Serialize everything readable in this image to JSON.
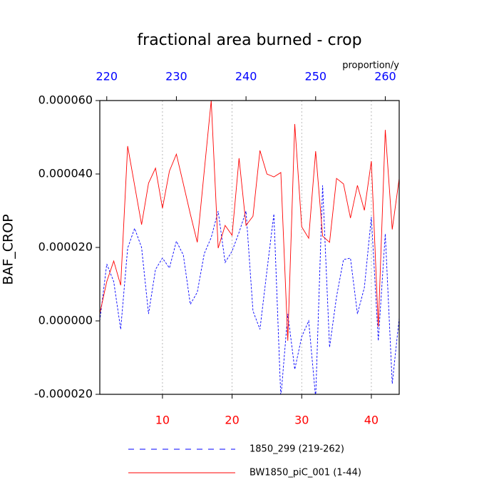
{
  "chart_data": {
    "type": "line",
    "title": "fractional area burned - crop",
    "subtitle": "proportion/y",
    "ylabel": "BAF_CROP",
    "x": [
      1,
      2,
      3,
      4,
      5,
      6,
      7,
      8,
      9,
      10,
      11,
      12,
      13,
      14,
      15,
      16,
      17,
      18,
      19,
      20,
      21,
      22,
      23,
      24,
      25,
      26,
      27,
      28,
      29,
      30,
      31,
      32,
      33,
      34,
      35,
      36,
      37,
      38,
      39,
      40,
      41,
      42,
      43,
      44
    ],
    "xlim": [
      1,
      44
    ],
    "xticks": [
      10,
      20,
      30,
      40
    ],
    "x2": [
      219,
      220,
      221,
      222,
      223,
      224,
      225,
      226,
      227,
      228,
      229,
      230,
      231,
      232,
      233,
      234,
      235,
      236,
      237,
      238,
      239,
      240,
      241,
      242,
      243,
      244,
      245,
      246,
      247,
      248,
      249,
      250,
      251,
      252,
      253,
      254,
      255,
      256,
      257,
      258,
      259,
      260,
      261,
      262
    ],
    "x2lim": [
      219,
      262
    ],
    "x2ticks": [
      220,
      230,
      240,
      250,
      260
    ],
    "ylim": [
      -2e-05,
      6e-05
    ],
    "yticks": [
      {
        "value": -2e-05,
        "label": "-0.000020"
      },
      {
        "value": 0,
        "label": "0.000000"
      },
      {
        "value": 2e-05,
        "label": "0.000020"
      },
      {
        "value": 4e-05,
        "label": "0.000040"
      },
      {
        "value": 6e-05,
        "label": "0.000060"
      }
    ],
    "grid": true,
    "series": [
      {
        "name": "1850_299 (219-262)",
        "color": "#0000ff",
        "dash": true,
        "axis": "x2",
        "values": [
          0,
          1.55e-05,
          1.07e-05,
          -2.3e-06,
          1.98e-05,
          2.52e-05,
          2e-05,
          1.9e-06,
          1.4e-05,
          1.71e-05,
          1.44e-05,
          2.17e-05,
          1.79e-05,
          4.5e-06,
          7.8e-06,
          1.83e-05,
          2.27e-05,
          2.99e-05,
          1.59e-05,
          1.9e-05,
          2.41e-05,
          2.99e-05,
          2.7e-06,
          -2.3e-06,
          1.36e-05,
          2.91e-05,
          -2.1e-05,
          1.9e-06,
          -1.32e-05,
          -4.3e-06,
          0,
          -2.1e-05,
          3.69e-05,
          -7.2e-06,
          6.6e-06,
          1.67e-05,
          1.71e-05,
          1.9e-06,
          9.1e-06,
          2.83e-05,
          -5.4e-06,
          2.37e-05,
          -1.71e-05,
          8e-07
        ]
      },
      {
        "name": "BW1850_piC_001 (1-44)",
        "color": "#ff0000",
        "dash": false,
        "values": [
          2e-06,
          1.07e-05,
          1.63e-05,
          9.7e-06,
          4.76e-05,
          3.69e-05,
          2.62e-05,
          3.75e-05,
          4.16e-05,
          3.07e-05,
          4.08e-05,
          4.54e-05,
          3.73e-05,
          2.91e-05,
          2.14e-05,
          4.08e-05,
          6e-05,
          1.98e-05,
          2.6e-05,
          2.33e-05,
          4.43e-05,
          2.6e-05,
          2.85e-05,
          4.64e-05,
          4e-05,
          3.92e-05,
          4.04e-05,
          -5.4e-06,
          5.36e-05,
          2.56e-05,
          2.25e-05,
          4.62e-05,
          2.31e-05,
          2.14e-05,
          3.88e-05,
          3.73e-05,
          2.8e-05,
          3.69e-05,
          3.01e-05,
          4.35e-05,
          -1.6e-06,
          5.2e-05,
          2.49e-05,
          3.88e-05
        ]
      }
    ]
  }
}
